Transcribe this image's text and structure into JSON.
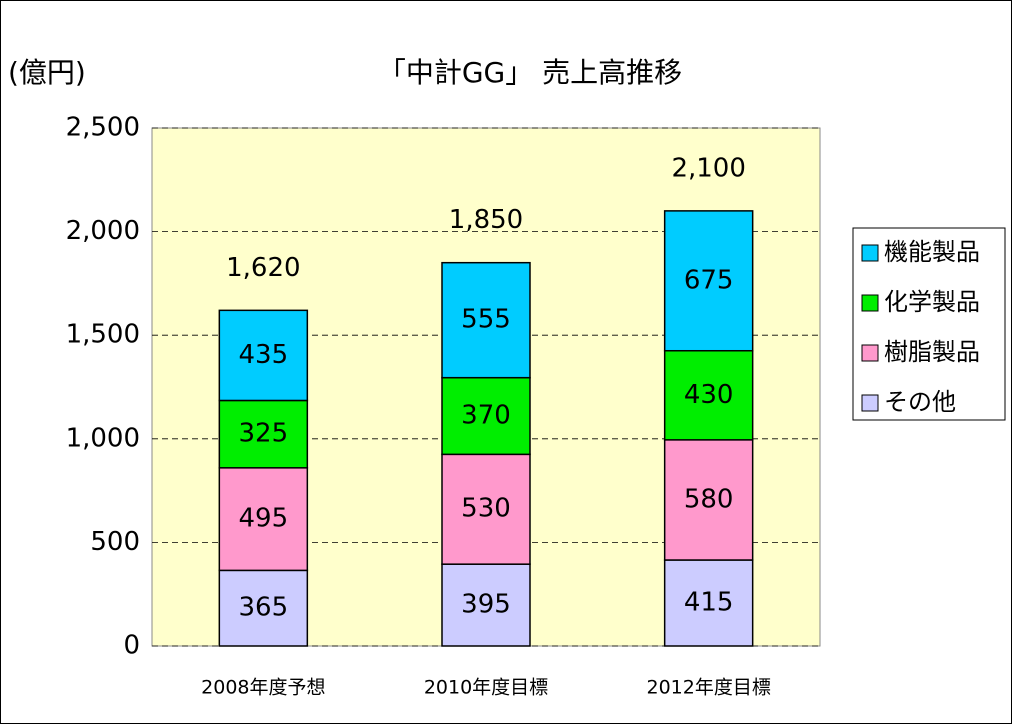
{
  "chart_data": {
    "type": "stacked_bar",
    "title": "「中計GG」 売上高推移",
    "y_unit": "(億円)",
    "categories": [
      "2008年度予想",
      "2010年度目標",
      "2012年度目標"
    ],
    "series": [
      {
        "name": "その他",
        "color": "#ccccff",
        "values": [
          365,
          395,
          415
        ]
      },
      {
        "name": "樹脂製品",
        "color": "#ff99cc",
        "values": [
          495,
          530,
          580
        ]
      },
      {
        "name": "化学製品",
        "color": "#00ee00",
        "values": [
          325,
          370,
          430
        ]
      },
      {
        "name": "機能製品",
        "color": "#00ccff",
        "values": [
          435,
          555,
          675
        ]
      }
    ],
    "totals": {
      "values": [
        1620,
        1850,
        2100
      ],
      "value_labels": [
        "1,620",
        "1,850",
        "2,100"
      ]
    },
    "ylim": [
      0,
      2500
    ],
    "yticks": [
      0,
      500,
      {
        "value": 1000,
        "label": "1,000"
      },
      {
        "value": 1500,
        "label": "1,500"
      },
      {
        "value": 2000,
        "label": "2,000"
      },
      {
        "value": 2500,
        "label": "2,500"
      }
    ],
    "grid": true,
    "legend": "right"
  }
}
